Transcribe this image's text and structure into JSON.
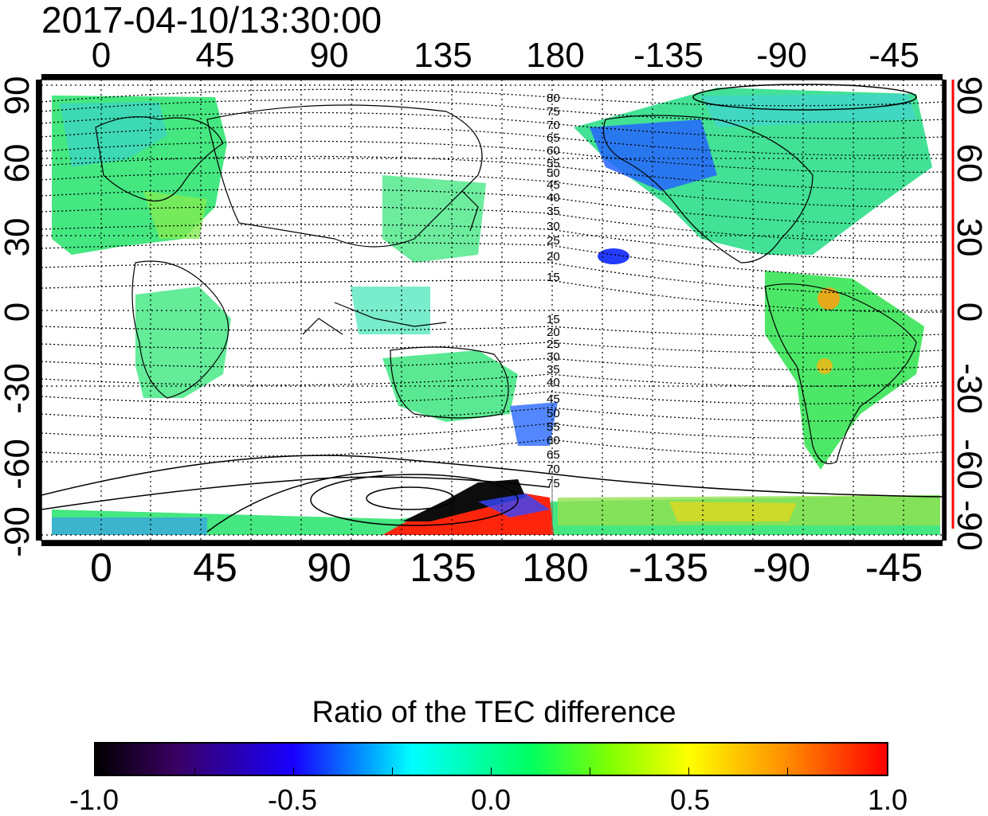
{
  "title": "2017-04-10/13:30:00",
  "axes": {
    "top_ticks": [
      "0",
      "45",
      "90",
      "135",
      "180",
      "-135",
      "-90",
      "-45"
    ],
    "bottom_ticks": [
      "0",
      "45",
      "90",
      "135",
      "180",
      "-135",
      "-90",
      "-45"
    ],
    "left_ticks": [
      "90",
      "60",
      "30",
      "0",
      "-30",
      "-60",
      "-90"
    ],
    "right_ticks": [
      "90",
      "60",
      "30",
      "0",
      "-30",
      "-60",
      "-90"
    ]
  },
  "contour_labels": {
    "north": [
      "80",
      "75",
      "70",
      "65",
      "60",
      "55",
      "50",
      "45",
      "40",
      "35",
      "30",
      "25",
      "20",
      "15"
    ],
    "south": [
      "15",
      "20",
      "25",
      "30",
      "35",
      "40",
      "45",
      "50",
      "55",
      "60",
      "65",
      "70",
      "75"
    ]
  },
  "colorbar": {
    "title": "Ratio of the TEC difference",
    "ticks": [
      "-1.0",
      "-0.5",
      "0.0",
      "0.5",
      "1.0"
    ]
  },
  "colors": {
    "neg_extreme": "#000000",
    "neg": "#1800ff",
    "zero": "#00ff60",
    "pos": "#ffff00",
    "pos_extreme": "#ff0000",
    "right_axis_accent": "#ff0000"
  }
}
